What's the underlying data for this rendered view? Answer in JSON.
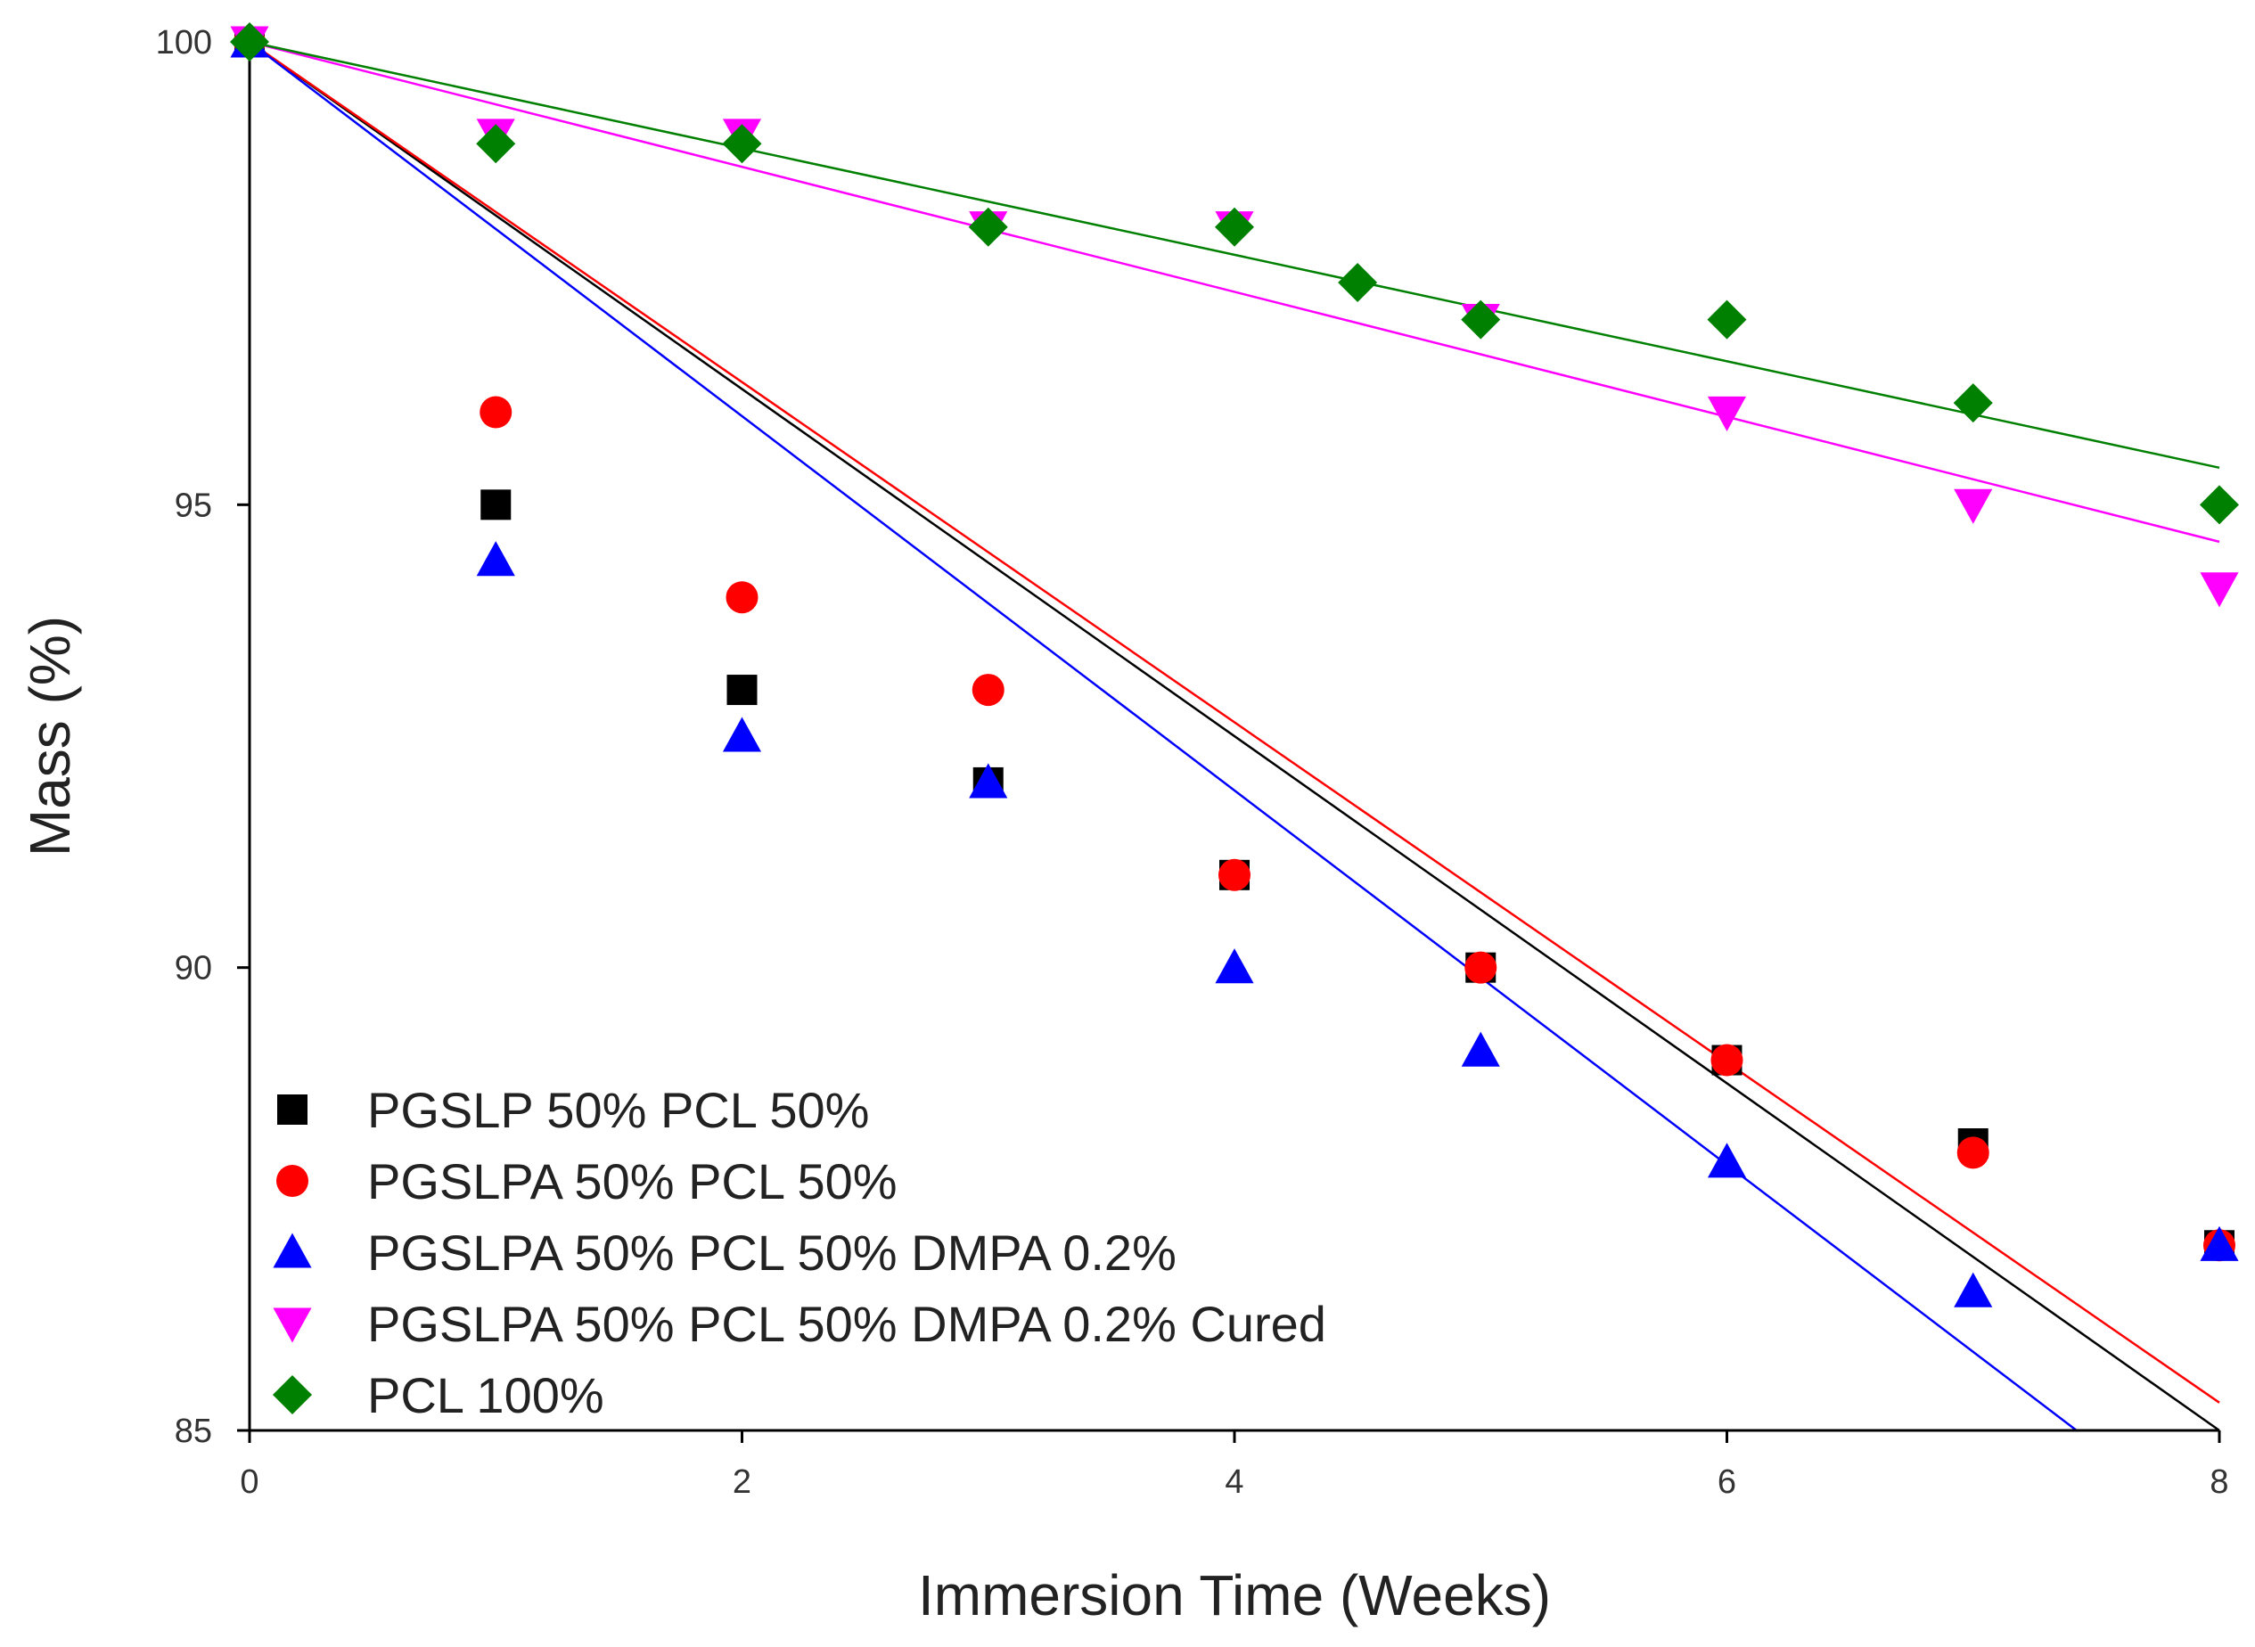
{
  "chart_data": {
    "type": "scatter",
    "title": "",
    "xlabel": "Immersion Time (Weeks)",
    "ylabel": "Mass (%)",
    "xlim": [
      0,
      8
    ],
    "ylim": [
      85,
      100
    ],
    "xticks": [
      0,
      2,
      4,
      6,
      8
    ],
    "yticks": [
      85,
      90,
      95,
      100
    ],
    "grid": false,
    "legend_position": "bottom-left",
    "series": [
      {
        "name": "PGSLP 50% PCL 50%",
        "marker": "square",
        "color": "#000000",
        "x": [
          0,
          1,
          2,
          3,
          4,
          5,
          6,
          7,
          8
        ],
        "y": [
          100,
          95.0,
          93.0,
          92.0,
          91.0,
          90.0,
          89.0,
          88.1,
          87.0
        ],
        "fit": {
          "x": [
            0,
            8
          ],
          "y": [
            100,
            85.0
          ]
        }
      },
      {
        "name": "PGSLPA 50% PCL 50%",
        "marker": "circle",
        "color": "#ff0000",
        "x": [
          0,
          1,
          2,
          3,
          4,
          5,
          6,
          7,
          8
        ],
        "y": [
          100,
          96.0,
          94.0,
          93.0,
          91.0,
          90.0,
          89.0,
          88.0,
          87.0
        ],
        "fit": {
          "x": [
            0,
            8
          ],
          "y": [
            100,
            85.3
          ]
        }
      },
      {
        "name": "PGSLPA 50% PCL 50% DMPA 0.2%",
        "marker": "triangle-up",
        "color": "#0000ff",
        "x": [
          0,
          1,
          2,
          3,
          4,
          5,
          6,
          7,
          8
        ],
        "y": [
          100,
          94.4,
          92.5,
          92.0,
          90.0,
          89.1,
          87.9,
          86.5,
          87.0
        ],
        "fit": {
          "x": [
            0,
            7.42
          ],
          "y": [
            100,
            85.0
          ]
        }
      },
      {
        "name": "PGSLPA 50% PCL 50% DMPA 0.2% Cured",
        "marker": "triangle-down",
        "color": "#ff00ff",
        "x": [
          0,
          1,
          2,
          3,
          4,
          5,
          6,
          7,
          8
        ],
        "y": [
          100,
          99.0,
          99.0,
          98.0,
          98.0,
          97.0,
          96.0,
          95.0,
          94.1
        ],
        "fit": {
          "x": [
            0,
            8
          ],
          "y": [
            100,
            94.6
          ]
        }
      },
      {
        "name": "PCL 100%",
        "marker": "diamond",
        "color": "#008000",
        "x": [
          0,
          1,
          2,
          3,
          4,
          4.5,
          5,
          6,
          7,
          8
        ],
        "y": [
          100,
          98.9,
          98.9,
          98.0,
          98.0,
          97.4,
          97.0,
          97.0,
          96.1,
          95.0
        ],
        "fit": {
          "x": [
            0,
            8
          ],
          "y": [
            100,
            95.4
          ]
        }
      }
    ]
  }
}
